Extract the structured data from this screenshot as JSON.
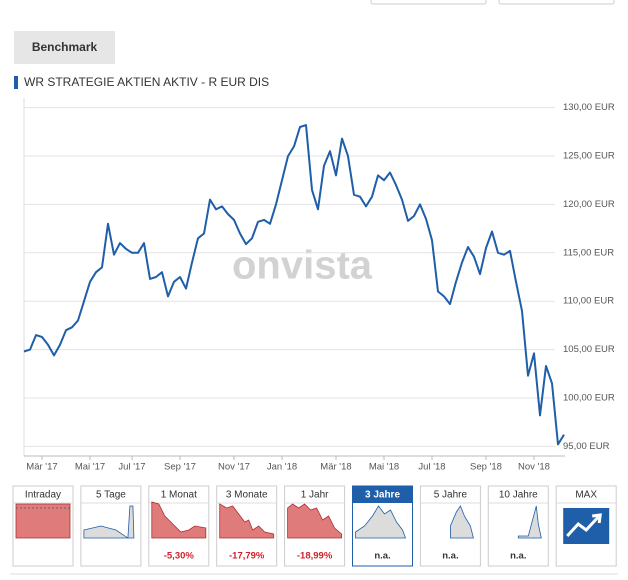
{
  "benchmark_button": "Benchmark",
  "chart_data": {
    "type": "line",
    "title": "WR STRATEGIE AKTIEN AKTIV - R EUR DIS",
    "watermark": "onvista",
    "color": "#1f5ea8",
    "grid": true,
    "categories": [
      null,
      null,
      null,
      "Mär '17",
      null,
      null,
      null,
      null,
      null,
      null,
      null,
      "Mai '17",
      null,
      null,
      null,
      null,
      null,
      null,
      "Jul '17",
      null,
      null,
      null,
      null,
      null,
      null,
      null,
      "Sep '17",
      null,
      null,
      null,
      null,
      null,
      null,
      null,
      null,
      "Nov '17",
      null,
      null,
      null,
      null,
      null,
      null,
      null,
      "Jan '18",
      null,
      null,
      null,
      null,
      null,
      null,
      null,
      null,
      "Mär '18",
      null,
      null,
      null,
      null,
      null,
      null,
      null,
      "Mai '18",
      null,
      null,
      null,
      null,
      null,
      null,
      null,
      "Jul '18",
      null,
      null,
      null,
      null,
      null,
      null,
      null,
      null,
      "Sep '18",
      null,
      null,
      null,
      null,
      null,
      null,
      null,
      "Nov '18",
      null,
      null,
      null,
      null,
      null
    ],
    "values": [
      104.8,
      105,
      106.5,
      106.3,
      105.5,
      104.4,
      105.5,
      107,
      107.3,
      108,
      110,
      112,
      113,
      113.5,
      118,
      114.8,
      116,
      115.4,
      115,
      115,
      116,
      112.3,
      112.5,
      113,
      110.5,
      112,
      112.5,
      111.3,
      114,
      116.5,
      117,
      120.5,
      119.5,
      119.8,
      119,
      118.4,
      117,
      115.9,
      116.5,
      118.2,
      118.4,
      118,
      120,
      122.5,
      125,
      126,
      128,
      128.2,
      121.5,
      119.5,
      124,
      125.5,
      123,
      126.8,
      125,
      121,
      120.8,
      119.8,
      120.8,
      123,
      122.5,
      123.3,
      122,
      120.5,
      118.3,
      118.8,
      120,
      118.5,
      116.3,
      111,
      110.5,
      109.7,
      112,
      114,
      115.6,
      114.6,
      112.8,
      115.5,
      117.2,
      115,
      114.8,
      115.2,
      112,
      109,
      102.3,
      104.6,
      98.2,
      103.3,
      101.5,
      95.2,
      96.2
    ],
    "ylim": [
      94,
      131
    ],
    "yticks": [
      {
        "value": 95,
        "label": "95,00 EUR"
      },
      {
        "value": 100,
        "label": "100,00 EUR"
      },
      {
        "value": 105,
        "label": "105,00 EUR"
      },
      {
        "value": 110,
        "label": "110,00 EUR"
      },
      {
        "value": 115,
        "label": "115,00 EUR"
      },
      {
        "value": 120,
        "label": "120,00 EUR"
      },
      {
        "value": 125,
        "label": "125,00 EUR"
      },
      {
        "value": 130,
        "label": "130,00 EUR"
      }
    ]
  },
  "tabs": [
    {
      "label": "Intraday"
    },
    {
      "label": "5 Tage"
    },
    {
      "label": "1 Monat",
      "change": "-5,30%"
    },
    {
      "label": "3 Monate",
      "change": "-17,79%"
    },
    {
      "label": "1 Jahr",
      "change": "-18,99%"
    },
    {
      "label": "3 Jahre",
      "change": "n.a.",
      "active": true
    },
    {
      "label": "5 Jahre",
      "change": "n.a."
    },
    {
      "label": "10 Jahre",
      "change": "n.a."
    },
    {
      "label": "MAX"
    }
  ]
}
